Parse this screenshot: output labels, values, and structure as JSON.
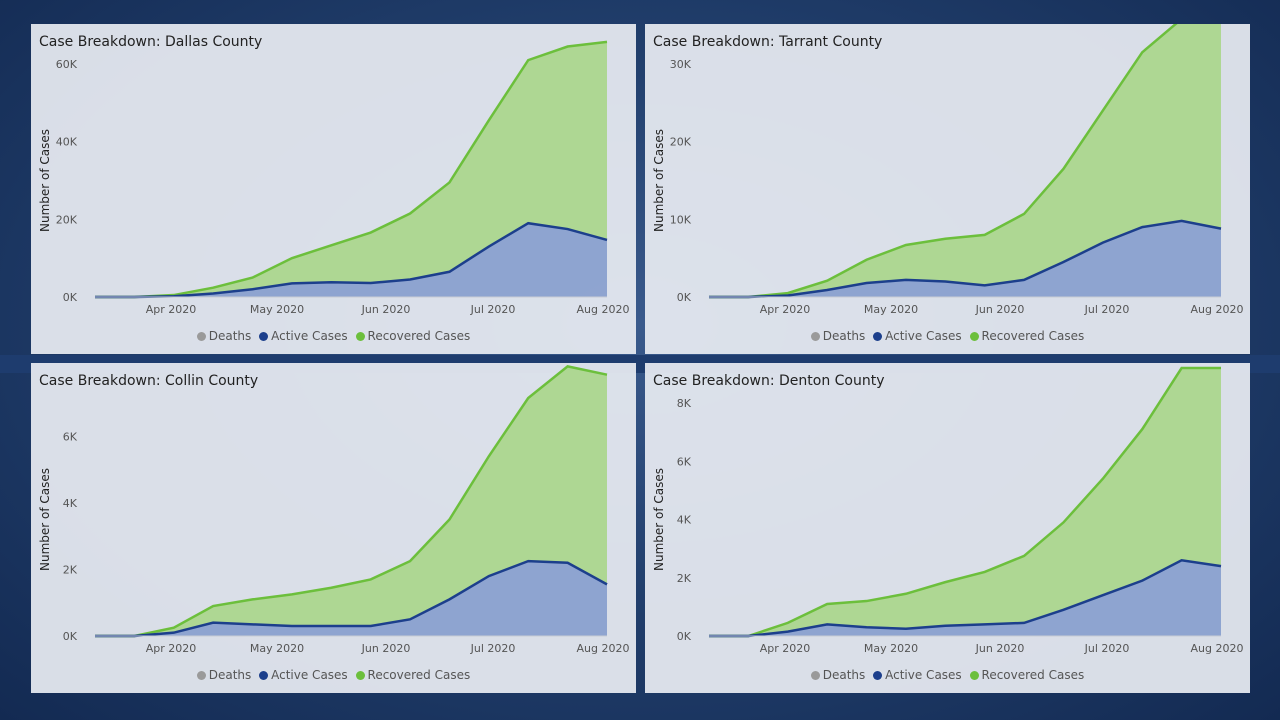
{
  "colors": {
    "deaths": "#9a9a9a",
    "active": "#1c3f8c",
    "active_fill": "#8aa0cf",
    "recovered": "#6cbf3c",
    "recovered_fill": "#a8d68a"
  },
  "chart_data": [
    {
      "type": "area",
      "title": "Case Breakdown: Dallas County",
      "ylabel": "Number of Cases",
      "ylim": [
        0,
        60000
      ],
      "yticks": [
        0,
        20000,
        40000,
        60000
      ],
      "ytick_labels": [
        "0K",
        "20K",
        "40K",
        "60K"
      ],
      "xticks": [
        "Apr 2020",
        "May 2020",
        "Jun 2020",
        "Jul 2020",
        "Aug 2020"
      ],
      "legend": [
        "Deaths",
        "Active Cases",
        "Recovered Cases"
      ],
      "series": [
        {
          "name": "Active Cases",
          "values": [
            0,
            0,
            200,
            900,
            2000,
            3500,
            3800,
            3600,
            4500,
            6500,
            13000,
            19000,
            17500,
            14700
          ]
        },
        {
          "name": "Recovered Cases",
          "values": [
            0,
            0,
            300,
            1500,
            3000,
            6500,
            9500,
            13000,
            17000,
            23000,
            32500,
            42000,
            47000,
            51000
          ]
        }
      ]
    },
    {
      "type": "area",
      "title": "Case Breakdown: Tarrant County",
      "ylabel": "Number of Cases",
      "ylim": [
        0,
        30000
      ],
      "yticks": [
        0,
        10000,
        20000,
        30000
      ],
      "ytick_labels": [
        "0K",
        "10K",
        "20K",
        "30K"
      ],
      "xticks": [
        "Apr 2020",
        "May 2020",
        "Jun 2020",
        "Jul 2020",
        "Aug 2020"
      ],
      "legend": [
        "Deaths",
        "Active Cases",
        "Recovered Cases"
      ],
      "series": [
        {
          "name": "Active Cases",
          "values": [
            0,
            0,
            200,
            900,
            1800,
            2200,
            2000,
            1500,
            2200,
            4500,
            7000,
            9000,
            9800,
            8800
          ]
        },
        {
          "name": "Recovered Cases",
          "values": [
            0,
            0,
            300,
            1200,
            3000,
            4500,
            5500,
            6500,
            8500,
            12000,
            17000,
            22500,
            26000,
            29000
          ]
        }
      ]
    },
    {
      "type": "area",
      "title": "Case Breakdown: Collin County",
      "ylabel": "Number of Cases",
      "ylim": [
        0,
        7000
      ],
      "yticks": [
        0,
        2000,
        4000,
        6000
      ],
      "ytick_labels": [
        "0K",
        "2K",
        "4K",
        "6K"
      ],
      "xticks": [
        "Apr 2020",
        "May 2020",
        "Jun 2020",
        "Jul 2020",
        "Aug 2020"
      ],
      "legend": [
        "Deaths",
        "Active Cases",
        "Recovered Cases"
      ],
      "series": [
        {
          "name": "Active Cases",
          "values": [
            0,
            0,
            100,
            400,
            350,
            300,
            300,
            300,
            500,
            1100,
            1800,
            2250,
            2200,
            1550
          ]
        },
        {
          "name": "Recovered Cases",
          "values": [
            0,
            0,
            150,
            500,
            750,
            950,
            1150,
            1400,
            1750,
            2400,
            3600,
            4900,
            5900,
            6300
          ]
        }
      ]
    },
    {
      "type": "area",
      "title": "Case Breakdown: Denton County",
      "ylabel": "Number of Cases",
      "ylim": [
        0,
        8000
      ],
      "yticks": [
        0,
        2000,
        4000,
        6000,
        8000
      ],
      "ytick_labels": [
        "0K",
        "2K",
        "4K",
        "6K",
        "8K"
      ],
      "xticks": [
        "Apr 2020",
        "May 2020",
        "Jun 2020",
        "Jul 2020",
        "Aug 2020"
      ],
      "legend": [
        "Deaths",
        "Active Cases",
        "Recovered Cases"
      ],
      "series": [
        {
          "name": "Active Cases",
          "values": [
            0,
            0,
            150,
            400,
            300,
            250,
            350,
            400,
            450,
            900,
            1400,
            1900,
            2600,
            2400
          ]
        },
        {
          "name": "Recovered Cases",
          "values": [
            0,
            0,
            300,
            700,
            900,
            1200,
            1500,
            1800,
            2300,
            3000,
            4000,
            5200,
            6600,
            6800
          ]
        }
      ]
    }
  ]
}
